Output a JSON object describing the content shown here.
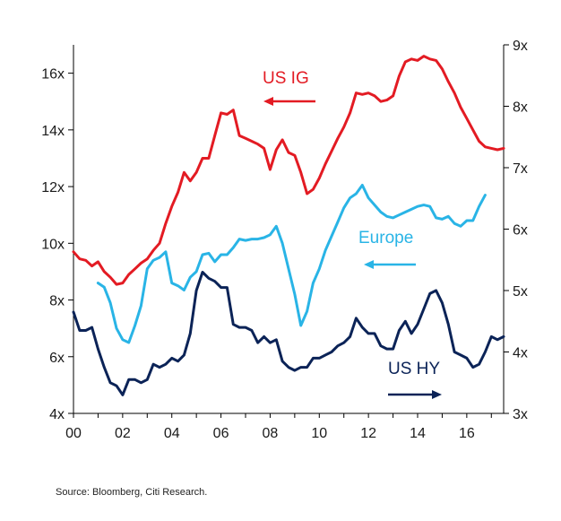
{
  "chart_data": {
    "type": "line",
    "title": "",
    "xlabel": "",
    "ylabel": "",
    "x_tick_labels": [
      "00",
      "02",
      "04",
      "06",
      "08",
      "10",
      "12",
      "14",
      "16"
    ],
    "x_tick_values": [
      2000,
      2002,
      2004,
      2006,
      2008,
      2010,
      2012,
      2014,
      2016
    ],
    "xlim": [
      2000,
      2017.5
    ],
    "y_left_tick_labels": [
      "4x",
      "6x",
      "8x",
      "10x",
      "12x",
      "14x",
      "16x"
    ],
    "y_left_tick_values": [
      4,
      6,
      8,
      10,
      12,
      14,
      16
    ],
    "ylim_left": [
      4,
      17
    ],
    "y_right_tick_labels": [
      "3x",
      "4x",
      "5x",
      "6x",
      "7x",
      "8x",
      "9x"
    ],
    "y_right_tick_values": [
      3,
      4,
      5,
      6,
      7,
      8,
      9
    ],
    "ylim_right": [
      3,
      9
    ],
    "grid": false,
    "series": [
      {
        "name": "US IG",
        "color": "#e31b23",
        "axis": "left",
        "x": [
          2000.0,
          2000.25,
          2000.5,
          2000.75,
          2001.0,
          2001.25,
          2001.5,
          2001.75,
          2002.0,
          2002.25,
          2002.5,
          2002.75,
          2003.0,
          2003.25,
          2003.5,
          2003.75,
          2004.0,
          2004.25,
          2004.5,
          2004.75,
          2005.0,
          2005.25,
          2005.5,
          2005.75,
          2006.0,
          2006.25,
          2006.5,
          2006.75,
          2007.0,
          2007.25,
          2007.5,
          2007.75,
          2008.0,
          2008.25,
          2008.5,
          2008.75,
          2009.0,
          2009.25,
          2009.5,
          2009.75,
          2010.0,
          2010.25,
          2010.5,
          2010.75,
          2011.0,
          2011.25,
          2011.5,
          2011.75,
          2012.0,
          2012.25,
          2012.5,
          2012.75,
          2013.0,
          2013.25,
          2013.5,
          2013.75,
          2014.0,
          2014.25,
          2014.5,
          2014.75,
          2015.0,
          2015.25,
          2015.5,
          2015.75,
          2016.0,
          2016.25,
          2016.5,
          2016.75,
          2017.0,
          2017.25,
          2017.5
        ],
        "values": [
          9.7,
          9.45,
          9.4,
          9.2,
          9.35,
          9.0,
          8.8,
          8.55,
          8.6,
          8.9,
          9.1,
          9.3,
          9.45,
          9.75,
          10.0,
          10.7,
          11.3,
          11.8,
          12.5,
          12.2,
          12.5,
          13.0,
          13.0,
          13.8,
          14.6,
          14.55,
          14.7,
          13.8,
          13.7,
          13.6,
          13.5,
          13.35,
          12.6,
          13.3,
          13.65,
          13.2,
          13.1,
          12.5,
          11.75,
          11.9,
          12.3,
          12.8,
          13.25,
          13.7,
          14.1,
          14.6,
          15.3,
          15.25,
          15.3,
          15.2,
          15.0,
          15.05,
          15.2,
          15.9,
          16.4,
          16.5,
          16.45,
          16.6,
          16.5,
          16.45,
          16.15,
          15.7,
          15.3,
          14.8,
          14.4,
          14.0,
          13.6,
          13.4,
          13.35,
          13.3,
          13.35
        ]
      },
      {
        "name": "Europe",
        "color": "#29b4e6",
        "axis": "left",
        "x": [
          2001.0,
          2001.25,
          2001.5,
          2001.75,
          2002.0,
          2002.25,
          2002.5,
          2002.75,
          2003.0,
          2003.25,
          2003.5,
          2003.75,
          2004.0,
          2004.25,
          2004.5,
          2004.75,
          2005.0,
          2005.25,
          2005.5,
          2005.75,
          2006.0,
          2006.25,
          2006.5,
          2006.75,
          2007.0,
          2007.25,
          2007.5,
          2007.75,
          2008.0,
          2008.25,
          2008.5,
          2008.75,
          2009.0,
          2009.25,
          2009.5,
          2009.75,
          2010.0,
          2010.25,
          2010.5,
          2010.75,
          2011.0,
          2011.25,
          2011.5,
          2011.75,
          2012.0,
          2012.25,
          2012.5,
          2012.75,
          2013.0,
          2013.25,
          2013.5,
          2013.75,
          2014.0,
          2014.25,
          2014.5,
          2014.75,
          2015.0,
          2015.25,
          2015.5,
          2015.75,
          2016.0,
          2016.25,
          2016.5,
          2016.75
        ],
        "values": [
          8.6,
          8.45,
          7.9,
          7.0,
          6.6,
          6.5,
          7.1,
          7.8,
          9.1,
          9.4,
          9.5,
          9.7,
          8.6,
          8.5,
          8.35,
          8.8,
          9.0,
          9.6,
          9.65,
          9.35,
          9.6,
          9.6,
          9.85,
          10.15,
          10.1,
          10.15,
          10.15,
          10.2,
          10.3,
          10.6,
          10.0,
          9.1,
          8.2,
          7.1,
          7.6,
          8.6,
          9.1,
          9.75,
          10.25,
          10.75,
          11.25,
          11.6,
          11.75,
          12.05,
          11.6,
          11.35,
          11.1,
          10.95,
          10.9,
          11.0,
          11.1,
          11.2,
          11.3,
          11.35,
          11.3,
          10.9,
          10.85,
          10.95,
          10.7,
          10.6,
          10.8,
          10.8,
          11.3,
          11.7
        ]
      },
      {
        "name": "US HY",
        "color": "#0b2357",
        "axis": "right",
        "x": [
          2000.0,
          2000.25,
          2000.5,
          2000.75,
          2001.0,
          2001.25,
          2001.5,
          2001.75,
          2002.0,
          2002.25,
          2002.5,
          2002.75,
          2003.0,
          2003.25,
          2003.5,
          2003.75,
          2004.0,
          2004.25,
          2004.5,
          2004.75,
          2005.0,
          2005.25,
          2005.5,
          2005.75,
          2006.0,
          2006.25,
          2006.5,
          2006.75,
          2007.0,
          2007.25,
          2007.5,
          2007.75,
          2008.0,
          2008.25,
          2008.5,
          2008.75,
          2009.0,
          2009.25,
          2009.5,
          2009.75,
          2010.0,
          2010.25,
          2010.5,
          2010.75,
          2011.0,
          2011.25,
          2011.5,
          2011.75,
          2012.0,
          2012.25,
          2012.5,
          2012.75,
          2013.0,
          2013.25,
          2013.5,
          2013.75,
          2014.0,
          2014.25,
          2014.5,
          2014.75,
          2015.0,
          2015.25,
          2015.5,
          2015.75,
          2016.0,
          2016.25,
          2016.5,
          2016.75,
          2017.0,
          2017.25,
          2017.5
        ],
        "values": [
          4.65,
          4.35,
          4.35,
          4.4,
          4.05,
          3.75,
          3.5,
          3.45,
          3.3,
          3.55,
          3.55,
          3.5,
          3.55,
          3.8,
          3.75,
          3.8,
          3.9,
          3.85,
          3.95,
          4.3,
          5.0,
          5.3,
          5.2,
          5.15,
          5.05,
          5.05,
          4.45,
          4.4,
          4.4,
          4.35,
          4.15,
          4.25,
          4.15,
          4.2,
          3.85,
          3.75,
          3.7,
          3.75,
          3.75,
          3.9,
          3.9,
          3.95,
          4.0,
          4.1,
          4.15,
          4.25,
          4.55,
          4.4,
          4.3,
          4.3,
          4.1,
          4.05,
          4.05,
          4.35,
          4.5,
          4.3,
          4.45,
          4.7,
          4.95,
          5.0,
          4.8,
          4.45,
          4.0,
          3.95,
          3.9,
          3.75,
          3.8,
          4.0,
          4.25,
          4.2,
          4.25
        ]
      }
    ],
    "annotations": [
      {
        "text": "US IG",
        "color": "#e31b23",
        "arrow": "left"
      },
      {
        "text": "Europe",
        "color": "#29b4e6",
        "arrow": "left"
      },
      {
        "text": "US HY",
        "color": "#0b2357",
        "arrow": "right"
      }
    ]
  },
  "source_note": "Source: Bloomberg, Citi Research."
}
